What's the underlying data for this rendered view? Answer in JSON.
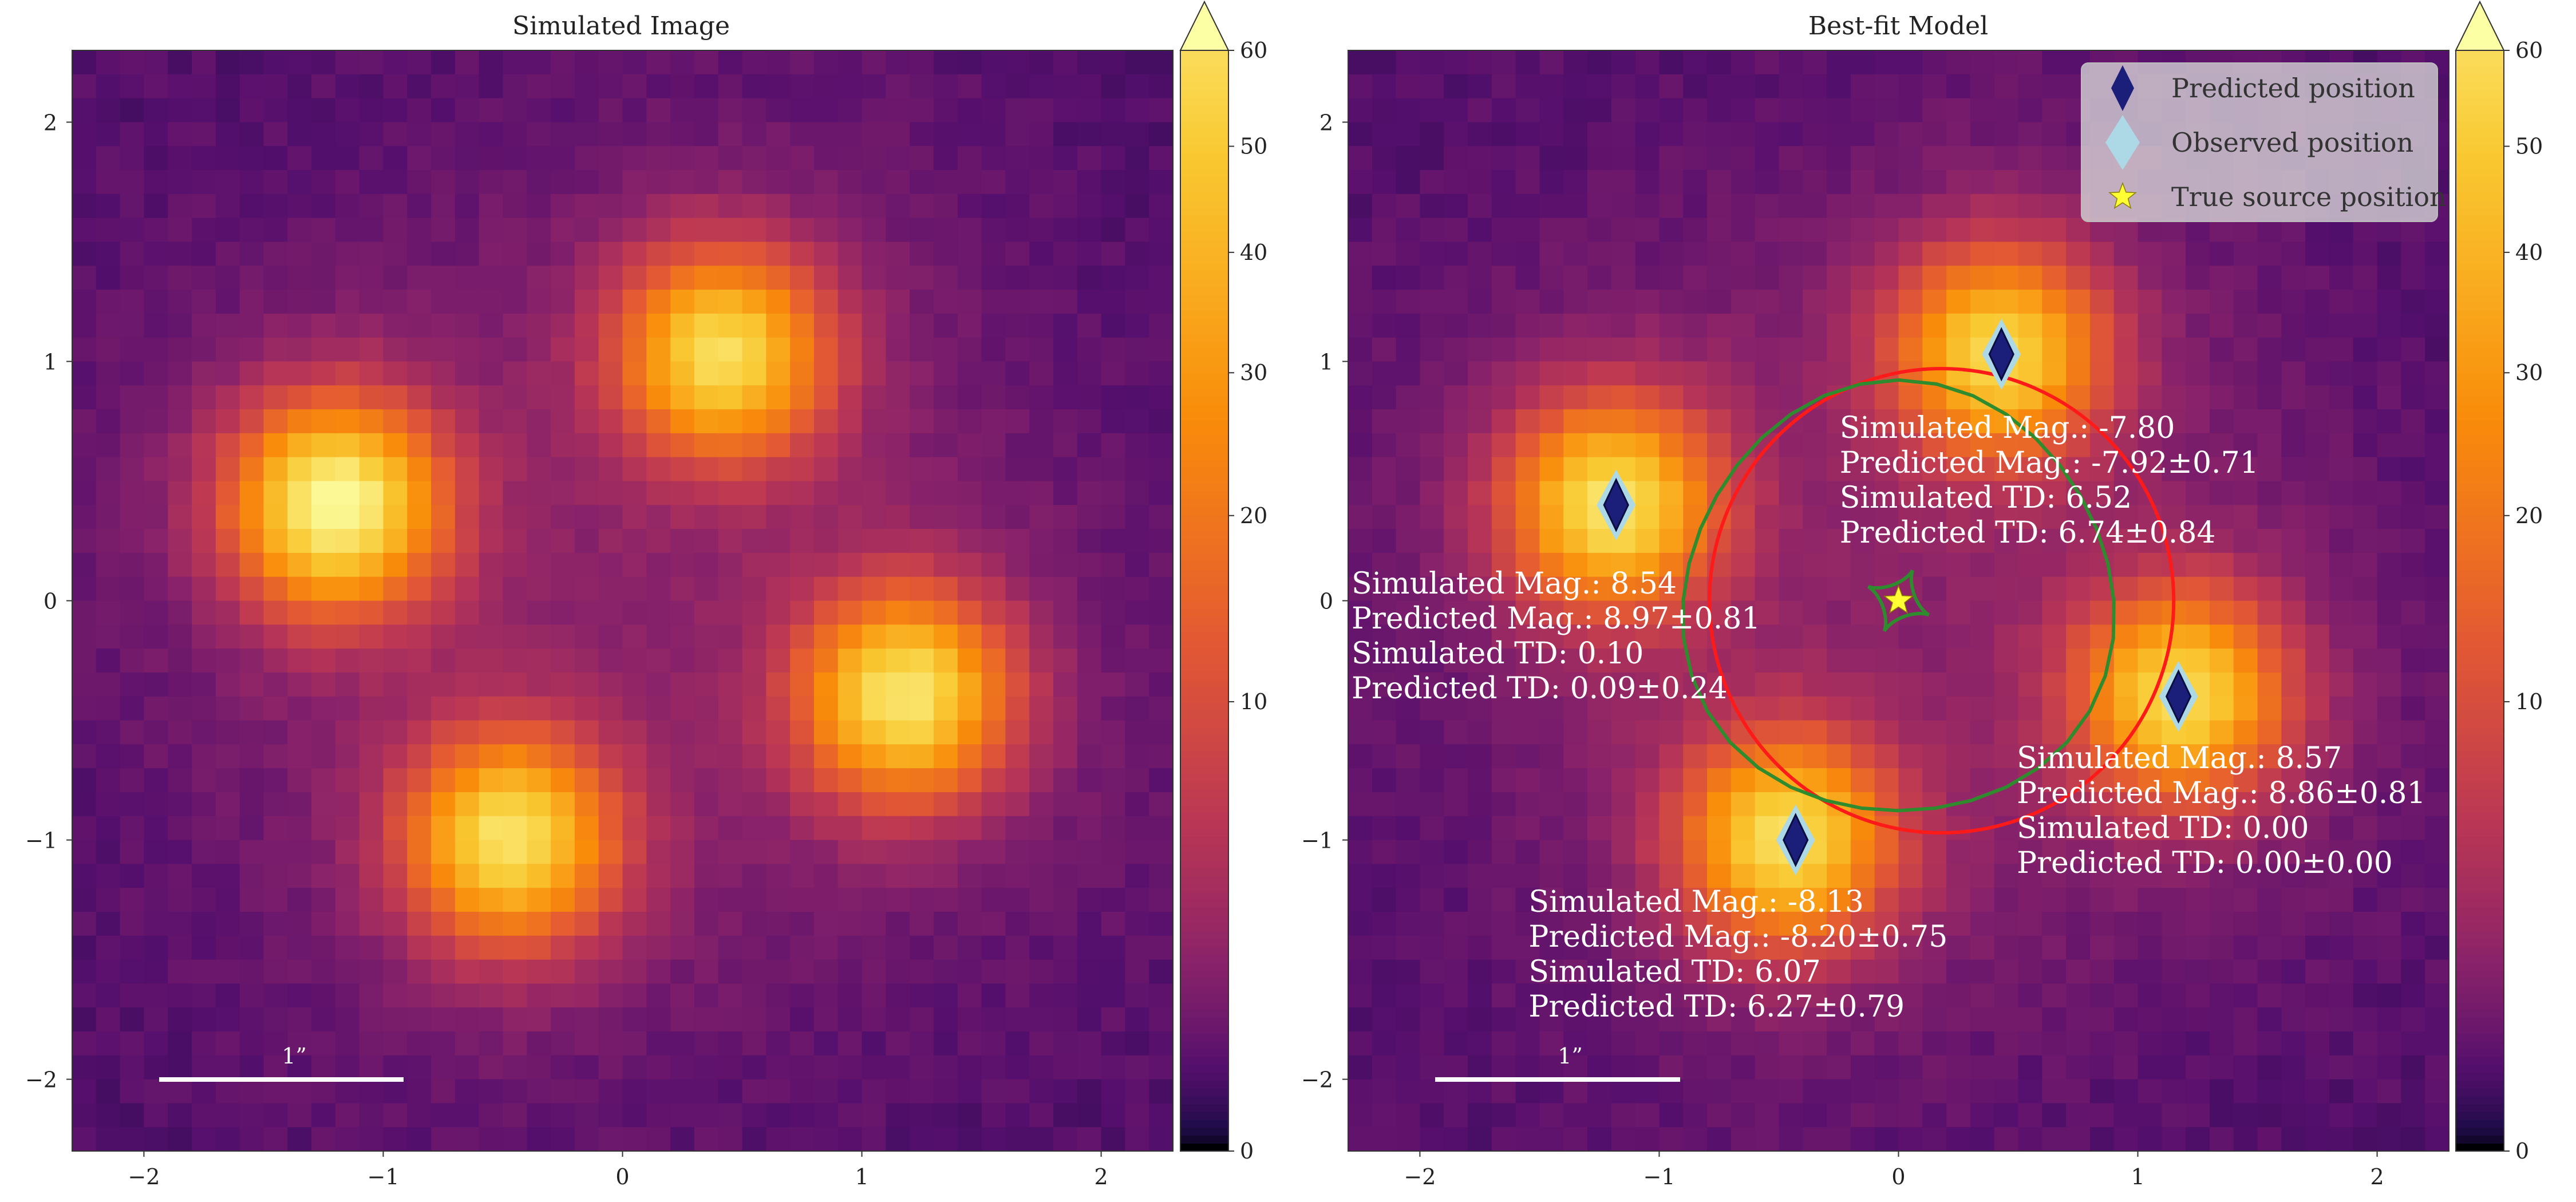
{
  "chart_data": [
    {
      "type": "heatmap",
      "title": "Simulated Image",
      "xlim": [
        -2.3,
        2.3
      ],
      "ylim": [
        -2.3,
        2.3
      ],
      "xticks": [
        -2,
        -1,
        0,
        1,
        2
      ],
      "yticks": [
        2,
        1,
        0,
        -1,
        -2
      ],
      "colorbar": {
        "min": 0,
        "max": 60,
        "ticks": [
          0,
          10,
          20,
          30,
          40,
          50,
          60
        ],
        "extend": "max",
        "colormap": "inferno"
      },
      "scale_bar_label": "1”",
      "sources": [
        {
          "x": -1.2,
          "y": 0.4,
          "peak": 60
        },
        {
          "x": 0.42,
          "y": 1.03,
          "peak": 50
        },
        {
          "x": 1.18,
          "y": -0.4,
          "peak": 53
        },
        {
          "x": -0.47,
          "y": -1.0,
          "peak": 52
        }
      ]
    },
    {
      "type": "heatmap",
      "title": "Best-fit Model",
      "xlim": [
        -2.3,
        2.3
      ],
      "ylim": [
        -2.3,
        2.3
      ],
      "xticks": [
        -2,
        -1,
        0,
        1,
        2
      ],
      "yticks": [
        2,
        1,
        0,
        -1,
        -2
      ],
      "colorbar": {
        "min": 0,
        "max": 60,
        "ticks": [
          0,
          10,
          20,
          30,
          40,
          50,
          60
        ],
        "extend": "max",
        "colormap": "inferno"
      },
      "scale_bar_label": "1”",
      "sources": [
        {
          "x": -1.2,
          "y": 0.4,
          "peak": 52
        },
        {
          "x": 0.42,
          "y": 1.03,
          "peak": 49
        },
        {
          "x": 1.18,
          "y": -0.4,
          "peak": 50
        },
        {
          "x": -0.47,
          "y": -1.0,
          "peak": 51
        }
      ],
      "legend": {
        "location": "top-right",
        "entries": [
          {
            "label": "Predicted position",
            "marker": "diamond",
            "color": "#1b1f7a"
          },
          {
            "label": "Observed position",
            "marker": "diamond",
            "color": "#add8e6"
          },
          {
            "label": "True source position",
            "marker": "star",
            "color": "#ffff33"
          }
        ]
      },
      "predicted_positions": [
        [
          -1.18,
          0.4
        ],
        [
          0.43,
          1.03
        ],
        [
          1.17,
          -0.4
        ],
        [
          -0.43,
          -1.0
        ]
      ],
      "true_source": [
        0.0,
        0.0
      ],
      "critical_curve": {
        "center": [
          0.18,
          0.0
        ],
        "radius": 0.97,
        "color": "#ff1a1a"
      },
      "caustic": {
        "center": [
          0.0,
          0.0
        ],
        "radius": 0.9,
        "color": "#2e8b2e"
      },
      "annotations": [
        {
          "x": -2.3,
          "y": 0.03,
          "lines": [
            "Simulated Mag.: 8.54",
            "Predicted Mag.: 8.97±0.81",
            "Simulated TD: 0.10",
            "Predicted TD: 0.09±0.24"
          ]
        },
        {
          "x": -0.26,
          "y": 0.68,
          "lines": [
            "Simulated Mag.: -7.80",
            "Predicted Mag.: -7.92±0.71",
            "Simulated TD: 6.52",
            "Predicted TD: 6.74±0.84"
          ]
        },
        {
          "x": 0.48,
          "y": -0.7,
          "lines": [
            "Simulated Mag.: 8.57",
            "Predicted Mag.: 8.86±0.81",
            "Simulated TD: 0.00",
            "Predicted TD: 0.00±0.00"
          ]
        },
        {
          "x": -1.56,
          "y": -1.3,
          "lines": [
            "Simulated Mag.: -8.13",
            "Predicted Mag.: -8.20±0.75",
            "Simulated TD: 6.07",
            "Predicted TD: 6.27±0.79"
          ]
        }
      ]
    }
  ]
}
